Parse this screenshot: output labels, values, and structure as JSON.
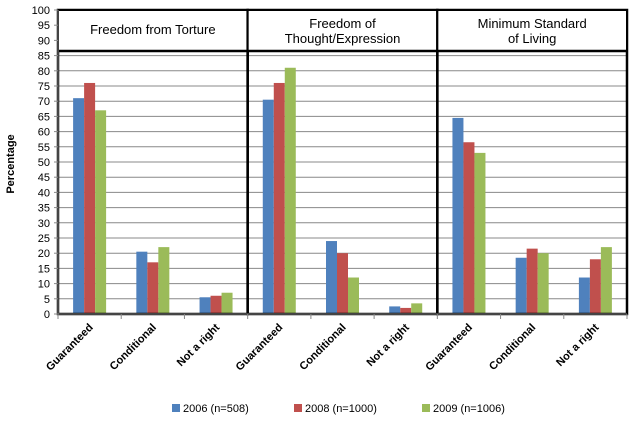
{
  "chart_data": {
    "type": "bar",
    "ylabel": "Percentage",
    "ylim": [
      0,
      100
    ],
    "ytick_step": 5,
    "grid": true,
    "legend_position": "bottom",
    "categories": [
      "Guaranteed",
      "Conditional",
      "Not a right"
    ],
    "panels": [
      {
        "title": "Freedom from Torture",
        "series": [
          {
            "name": "2006 (n=508)",
            "values": [
              71,
              20.5,
              5.5
            ]
          },
          {
            "name": "2008 (n=1000)",
            "values": [
              76,
              17,
              6
            ]
          },
          {
            "name": "2009 (n=1006)",
            "values": [
              67,
              22,
              7
            ]
          }
        ]
      },
      {
        "title": "Freedom of Thought/Expression",
        "series": [
          {
            "name": "2006 (n=508)",
            "values": [
              70.5,
              24,
              2.5
            ]
          },
          {
            "name": "2008 (n=1000)",
            "values": [
              76,
              20,
              2
            ]
          },
          {
            "name": "2009 (n=1006)",
            "values": [
              81,
              12,
              3.5
            ]
          }
        ]
      },
      {
        "title": "Minimum Standard of Living",
        "series": [
          {
            "name": "2006 (n=508)",
            "values": [
              64.5,
              18.5,
              12
            ]
          },
          {
            "name": "2008 (n=1000)",
            "values": [
              56.5,
              21.5,
              18
            ]
          },
          {
            "name": "2009 (n=1006)",
            "values": [
              53,
              20,
              22
            ]
          }
        ]
      }
    ],
    "series_names": [
      "2006 (n=508)",
      "2008 (n=1000)",
      "2009 (n=1006)"
    ],
    "colors": [
      "#4F81BD",
      "#C0504D",
      "#9BBB59"
    ]
  }
}
